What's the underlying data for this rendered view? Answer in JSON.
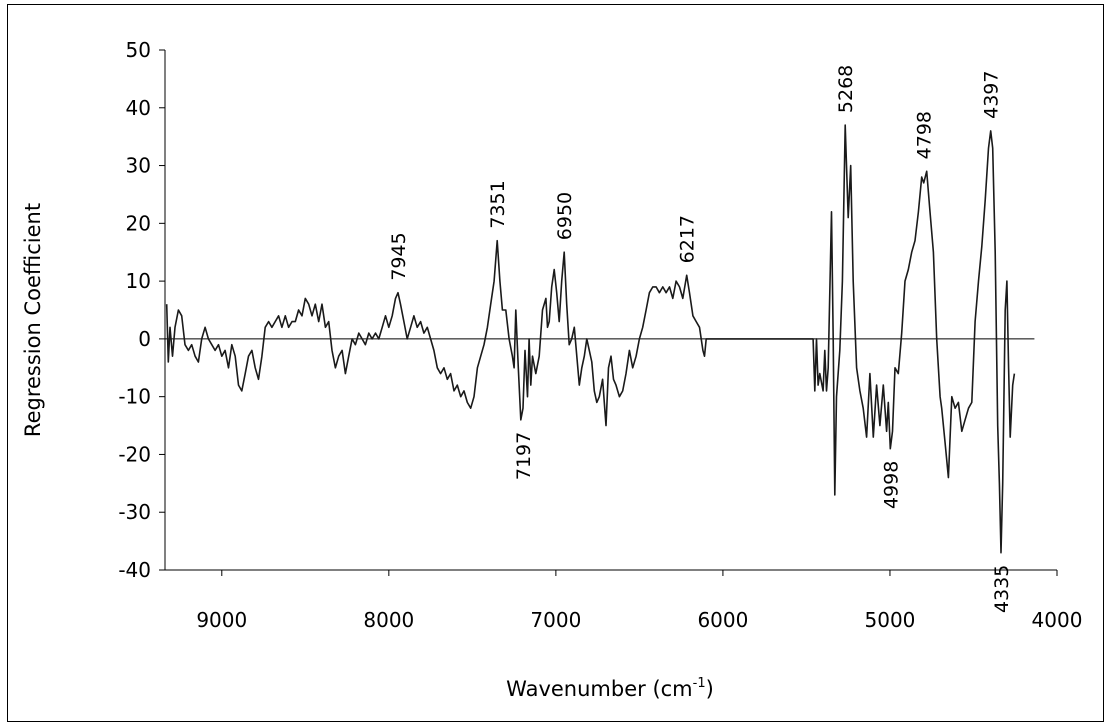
{
  "chart_data": {
    "type": "line",
    "xlabel": {
      "text": "Wavenumber (cm",
      "sup": "-1",
      "suffix": ")"
    },
    "ylabel": "Regression Coefficient",
    "xlim": [
      9340,
      4000
    ],
    "ylim": [
      -40,
      50
    ],
    "xticks": [
      9000,
      8000,
      7000,
      6000,
      5000,
      4000
    ],
    "yticks": [
      -40,
      -30,
      -20,
      -10,
      0,
      10,
      20,
      30,
      40,
      50
    ],
    "color": "#1a1a1a",
    "x": [
      9330,
      9320,
      9310,
      9295,
      9280,
      9260,
      9240,
      9220,
      9200,
      9180,
      9160,
      9140,
      9120,
      9100,
      9080,
      9060,
      9040,
      9020,
      9000,
      8980,
      8960,
      8940,
      8920,
      8900,
      8880,
      8860,
      8840,
      8820,
      8800,
      8780,
      8760,
      8740,
      8720,
      8700,
      8680,
      8660,
      8640,
      8620,
      8600,
      8580,
      8560,
      8540,
      8520,
      8500,
      8480,
      8460,
      8440,
      8420,
      8400,
      8380,
      8360,
      8340,
      8320,
      8300,
      8280,
      8260,
      8240,
      8220,
      8200,
      8180,
      8160,
      8140,
      8120,
      8100,
      8080,
      8060,
      8040,
      8020,
      8000,
      7980,
      7960,
      7945,
      7930,
      7910,
      7890,
      7870,
      7850,
      7830,
      7810,
      7790,
      7770,
      7750,
      7730,
      7710,
      7690,
      7670,
      7650,
      7630,
      7610,
      7590,
      7570,
      7550,
      7530,
      7510,
      7490,
      7470,
      7450,
      7430,
      7410,
      7390,
      7370,
      7351,
      7335,
      7320,
      7300,
      7280,
      7260,
      7250,
      7240,
      7225,
      7210,
      7197,
      7185,
      7170,
      7160,
      7150,
      7140,
      7120,
      7100,
      7080,
      7060,
      7050,
      7040,
      7025,
      7010,
      6995,
      6980,
      6965,
      6950,
      6935,
      6920,
      6905,
      6890,
      6875,
      6860,
      6845,
      6830,
      6815,
      6800,
      6785,
      6770,
      6755,
      6740,
      6720,
      6700,
      6685,
      6670,
      6655,
      6640,
      6620,
      6600,
      6580,
      6560,
      6540,
      6520,
      6500,
      6480,
      6460,
      6440,
      6420,
      6400,
      6380,
      6360,
      6340,
      6320,
      6300,
      6280,
      6260,
      6240,
      6217,
      6200,
      6180,
      6160,
      6140,
      6120,
      6110,
      6100,
      5460,
      5450,
      5440,
      5430,
      5420,
      5400,
      5390,
      5380,
      5370,
      5350,
      5340,
      5330,
      5320,
      5300,
      5285,
      5268,
      5250,
      5235,
      5220,
      5200,
      5180,
      5160,
      5140,
      5120,
      5100,
      5080,
      5060,
      5040,
      5020,
      5010,
      4998,
      4985,
      4970,
      4950,
      4930,
      4910,
      4890,
      4870,
      4850,
      4830,
      4810,
      4798,
      4780,
      4760,
      4740,
      4720,
      4700,
      4690,
      4670,
      4650,
      4630,
      4610,
      4590,
      4570,
      4550,
      4530,
      4510,
      4490,
      4470,
      4450,
      4430,
      4410,
      4397,
      4385,
      4370,
      4355,
      4345,
      4335,
      4325,
      4310,
      4300,
      4290,
      4280,
      4265,
      4255
    ],
    "values": [
      6,
      -4,
      2,
      -3,
      2,
      5,
      4,
      -1,
      -2,
      -1,
      -3,
      -4,
      0,
      2,
      0,
      -1,
      -2,
      -1,
      -3,
      -2,
      -5,
      -1,
      -3,
      -8,
      -9,
      -6,
      -3,
      -2,
      -5,
      -7,
      -3,
      2,
      3,
      2,
      3,
      4,
      2,
      4,
      2,
      3,
      3,
      5,
      4,
      7,
      6,
      4,
      6,
      3,
      6,
      2,
      3,
      -2,
      -5,
      -3,
      -2,
      -6,
      -3,
      0,
      -1,
      1,
      0,
      -1,
      1,
      0,
      1,
      0,
      2,
      4,
      2,
      4,
      7,
      8,
      6,
      3,
      0,
      2,
      4,
      2,
      3,
      1,
      2,
      0,
      -2,
      -5,
      -6,
      -5,
      -7,
      -6,
      -9,
      -8,
      -10,
      -9,
      -11,
      -12,
      -10,
      -5,
      -3,
      -1,
      2,
      6,
      10,
      17,
      10,
      5,
      5,
      0,
      -3,
      -5,
      5,
      -5,
      -14,
      -12,
      -2,
      -10,
      0,
      -8,
      -3,
      -6,
      -3,
      5,
      7,
      2,
      3,
      9,
      12,
      8,
      3,
      10,
      15,
      6,
      -1,
      0,
      2,
      -3,
      -8,
      -5,
      -3,
      0,
      -2,
      -4,
      -9,
      -11,
      -10,
      -7,
      -15,
      -5,
      -3,
      -7,
      -8,
      -10,
      -9,
      -6,
      -2,
      -5,
      -3,
      0,
      2,
      5,
      8,
      9,
      9,
      8,
      9,
      8,
      9,
      7,
      10,
      9,
      7,
      11,
      8,
      4,
      3,
      2,
      -2,
      -3,
      0,
      0,
      -9,
      0,
      -8,
      -6,
      -9,
      -2,
      -9,
      -5,
      22,
      0,
      -27,
      -10,
      -2,
      10,
      37,
      21,
      30,
      10,
      -5,
      -9,
      -12,
      -17,
      -6,
      -17,
      -8,
      -15,
      -8,
      -16,
      -11,
      -19,
      -16,
      -5,
      -6,
      1,
      10,
      12,
      15,
      17,
      22,
      28,
      27,
      29,
      22,
      15,
      0,
      -10,
      -12,
      -18,
      -24,
      -10,
      -12,
      -11,
      -16,
      -14,
      -12,
      -11,
      3,
      10,
      16,
      24,
      33,
      36,
      33,
      15,
      -15,
      -25,
      -37,
      -25,
      5,
      10,
      -5,
      -17,
      -8,
      -6
    ],
    "annotations": [
      {
        "text": "7945",
        "x": 7945
      },
      {
        "text": "7351",
        "x": 7351
      },
      {
        "text": "6950",
        "x": 6950
      },
      {
        "text": "6217",
        "x": 6217
      },
      {
        "text": "5268",
        "x": 5268
      },
      {
        "text": "4798",
        "x": 4798
      },
      {
        "text": "4397",
        "x": 4397
      },
      {
        "text": "7197",
        "x": 7197
      },
      {
        "text": "4998",
        "x": 4998
      },
      {
        "text": "4335",
        "x": 4335
      }
    ]
  }
}
